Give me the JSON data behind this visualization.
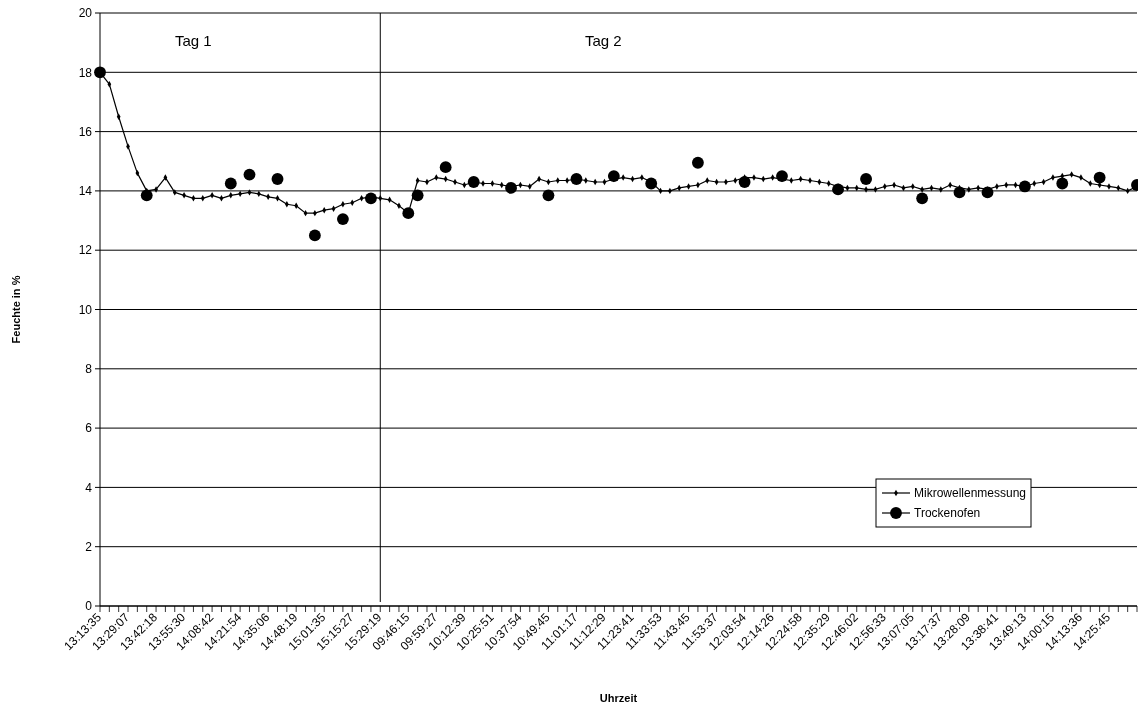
{
  "chart_data": {
    "type": "line",
    "xlabel": "Uhrzeit",
    "ylabel": "Feuchte in %",
    "categories": [
      "13:13:35",
      null,
      null,
      "13:29:07",
      null,
      null,
      "13:42:18",
      null,
      null,
      "13:55:30",
      null,
      null,
      "14:08:42",
      null,
      null,
      "14:21:54",
      null,
      null,
      "14:35:06",
      null,
      null,
      "14:48:19",
      null,
      null,
      "15:01:35",
      null,
      null,
      "15:15:27",
      null,
      null,
      "15:29:19",
      null,
      null,
      "09:46:15",
      null,
      null,
      "09:59:27",
      null,
      null,
      "10:12:39",
      null,
      null,
      "10:25:51",
      null,
      null,
      "10:37:54",
      null,
      null,
      "10:49:45",
      null,
      null,
      "11:01:17",
      null,
      null,
      "11:12:29",
      null,
      null,
      "11:23:41",
      null,
      null,
      "11:33:53",
      null,
      null,
      "11:43:45",
      null,
      null,
      "11:53:37",
      null,
      null,
      "12:03:54",
      null,
      null,
      "12:14:26",
      null,
      null,
      "12:24:58",
      null,
      null,
      "12:35:29",
      null,
      null,
      "12:46:02",
      null,
      null,
      "12:56:33",
      null,
      null,
      "13:07:05",
      null,
      null,
      "13:17:37",
      null,
      null,
      "13:28:09",
      null,
      null,
      "13:38:41",
      null,
      null,
      "13:49:13",
      null,
      null,
      "14:00:15",
      null,
      null,
      "14:13:36",
      null,
      null,
      "14:25:45",
      null,
      null,
      null
    ],
    "series": [
      {
        "name": "Mikrowellenmessung",
        "marker": "diamond",
        "color": "#000000",
        "values": [
          18,
          17.6,
          16.5,
          15.5,
          14.6,
          14.0,
          14.05,
          14.45,
          13.95,
          13.85,
          13.75,
          13.75,
          13.85,
          13.75,
          13.85,
          13.9,
          13.95,
          13.9,
          13.8,
          13.75,
          13.55,
          13.5,
          13.25,
          13.25,
          13.35,
          13.4,
          13.55,
          13.6,
          13.75,
          13.8,
          13.75,
          13.7,
          13.5,
          13.25,
          14.35,
          14.3,
          14.45,
          14.4,
          14.3,
          14.2,
          14.3,
          14.25,
          14.25,
          14.2,
          14.15,
          14.2,
          14.15,
          14.4,
          14.3,
          14.35,
          14.35,
          14.4,
          14.35,
          14.3,
          14.3,
          14.4,
          14.45,
          14.4,
          14.45,
          14.3,
          14.0,
          14.0,
          14.1,
          14.15,
          14.2,
          14.35,
          14.3,
          14.3,
          14.35,
          14.45,
          14.45,
          14.4,
          14.45,
          14.4,
          14.35,
          14.4,
          14.35,
          14.3,
          14.25,
          14.15,
          14.1,
          14.1,
          14.05,
          14.05,
          14.15,
          14.2,
          14.1,
          14.15,
          14.05,
          14.1,
          14.05,
          14.2,
          14.1,
          14.05,
          14.1,
          14.05,
          14.15,
          14.2,
          14.2,
          14.15,
          14.25,
          14.3,
          14.45,
          14.5,
          14.55,
          14.45,
          14.25,
          14.2,
          14.15,
          14.1,
          14.0,
          14.15
        ]
      },
      {
        "name": "Trockenofen",
        "type": "scatter",
        "marker": "circle",
        "color": "#000000",
        "values": [
          18,
          null,
          null,
          null,
          null,
          13.85,
          null,
          null,
          null,
          null,
          null,
          null,
          null,
          null,
          14.25,
          null,
          14.55,
          null,
          null,
          14.4,
          null,
          null,
          null,
          12.5,
          null,
          null,
          13.05,
          null,
          null,
          13.75,
          null,
          null,
          null,
          13.25,
          13.85,
          null,
          null,
          14.8,
          null,
          null,
          14.3,
          null,
          null,
          null,
          14.1,
          null,
          null,
          null,
          13.85,
          null,
          null,
          14.4,
          null,
          null,
          null,
          14.5,
          null,
          null,
          null,
          14.25,
          null,
          null,
          null,
          null,
          14.95,
          null,
          null,
          null,
          null,
          14.3,
          null,
          null,
          null,
          14.5,
          null,
          null,
          null,
          null,
          null,
          14.05,
          null,
          null,
          14.4,
          null,
          null,
          null,
          null,
          null,
          13.75,
          null,
          null,
          null,
          13.95,
          null,
          null,
          13.95,
          null,
          null,
          null,
          14.15,
          null,
          null,
          null,
          14.25,
          null,
          null,
          null,
          14.45,
          null,
          null,
          null,
          14.2
        ]
      }
    ],
    "ylim": [
      0,
      20
    ],
    "yticks": [
      0,
      2,
      4,
      6,
      8,
      10,
      12,
      14,
      16,
      18,
      20
    ],
    "grid": "y",
    "legend": "right",
    "ref_lines": [
      {
        "axis": "x",
        "value": "15:29:19",
        "color": "#000000"
      }
    ],
    "annotations": [
      "Tag 1",
      "Tag 2"
    ]
  }
}
